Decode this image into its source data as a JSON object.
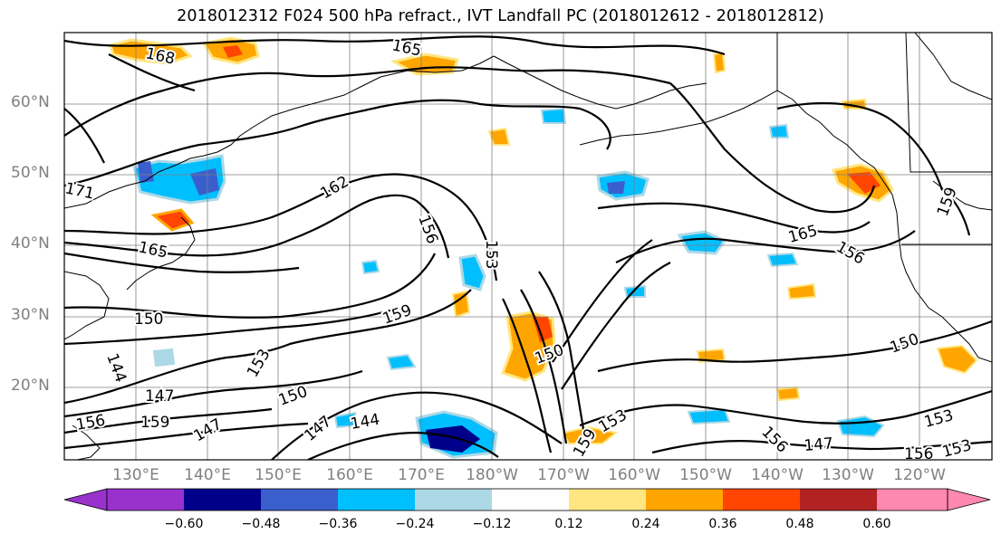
{
  "title": "2018012312 F024 500 hPa refract., IVT Landfall PC (2018012612 - 2018012812)",
  "lat_labels": [
    "60°N",
    "50°N",
    "40°N",
    "30°N",
    "20°N"
  ],
  "lon_labels": [
    "130°E",
    "140°E",
    "150°E",
    "160°E",
    "170°E",
    "180°W",
    "170°W",
    "160°W",
    "150°W",
    "140°W",
    "130°W",
    "120°W"
  ],
  "contour_labels": [
    "168",
    "165",
    "171",
    "162",
    "165",
    "156",
    "153",
    "150",
    "159",
    "144",
    "153",
    "150",
    "147",
    "156",
    "159",
    "147",
    "147",
    "144",
    "150",
    "165",
    "156",
    "159",
    "150",
    "153",
    "147",
    "156",
    "156",
    "153",
    "153",
    "159"
  ],
  "colorbar": {
    "tick_labels": [
      "−0.60",
      "−0.48",
      "−0.36",
      "−0.24",
      "−0.12",
      "0.12",
      "0.24",
      "0.36",
      "0.48",
      "0.60"
    ],
    "colors": [
      "#9932cc",
      "#00008b",
      "#3a5fcd",
      "#00bfff",
      "#add8e6",
      "#ffffff",
      "#ffe680",
      "#ffa500",
      "#ff4500",
      "#b22222",
      "#ff88b0"
    ]
  },
  "palette": {
    "blue_dark": "#3a5fcd",
    "blue_mid": "#00bfff",
    "blue_light": "#add8e6",
    "navy": "#00008b",
    "yellow": "#ffe680",
    "orange": "#ffa500",
    "red": "#ff4500"
  }
}
